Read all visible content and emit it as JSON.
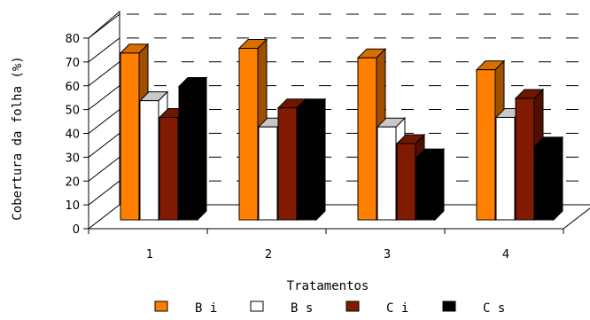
{
  "chart_data": {
    "type": "bar",
    "categories": [
      "1",
      "2",
      "3",
      "4"
    ],
    "series": [
      {
        "name": "B i",
        "values": [
          70,
          72,
          68,
          63
        ],
        "color": "#FF8000"
      },
      {
        "name": "B s",
        "values": [
          50,
          39,
          39,
          43
        ],
        "color": "#FFFFFF"
      },
      {
        "name": "C i",
        "values": [
          43,
          47,
          32,
          51
        ],
        "color": "#801A00"
      },
      {
        "name": "C s",
        "values": [
          56,
          47,
          26,
          31
        ],
        "color": "#000000"
      }
    ],
    "title": "",
    "xlabel": "Tratamentos",
    "ylabel": "Cobertura da folha (%)",
    "ylim": [
      0,
      80
    ],
    "yticks": [
      "0",
      "10",
      "20",
      "30",
      "40",
      "50",
      "60",
      "70",
      "80"
    ],
    "grid": true,
    "legend_position": "bottom"
  }
}
